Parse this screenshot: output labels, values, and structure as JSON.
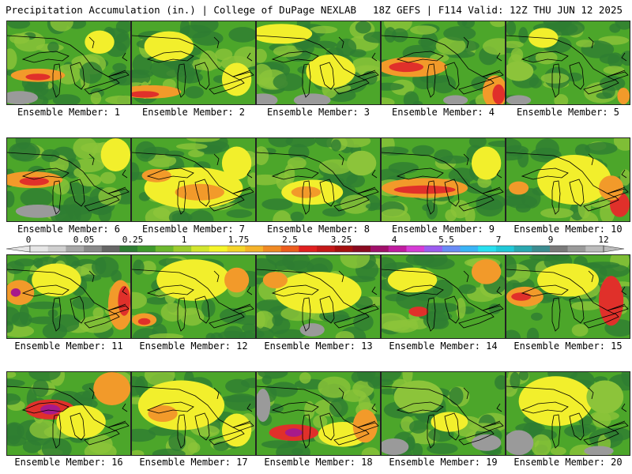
{
  "header": {
    "left": "Precipitation Accumulation (in.) | College of DuPage NEXLAB",
    "right": "18Z GEFS | F114 Valid: 12Z THU JUN 12 2025"
  },
  "panels": [
    {
      "label": "Ensemble Member: 1"
    },
    {
      "label": "Ensemble Member: 2"
    },
    {
      "label": "Ensemble Member: 3"
    },
    {
      "label": "Ensemble Member: 4"
    },
    {
      "label": "Ensemble Member: 5"
    },
    {
      "label": "Ensemble Member: 6"
    },
    {
      "label": "Ensemble Member: 7"
    },
    {
      "label": "Ensemble Member: 8"
    },
    {
      "label": "Ensemble Member: 9"
    },
    {
      "label": "Ensemble Member: 10"
    },
    {
      "label": "Ensemble Member: 11"
    },
    {
      "label": "Ensemble Member: 12"
    },
    {
      "label": "Ensemble Member: 13"
    },
    {
      "label": "Ensemble Member: 14"
    },
    {
      "label": "Ensemble Member: 15"
    },
    {
      "label": "Ensemble Member: 16"
    },
    {
      "label": "Ensemble Member: 17"
    },
    {
      "label": "Ensemble Member: 18"
    },
    {
      "label": "Ensemble Member: 19"
    },
    {
      "label": "Ensemble Member: 20"
    }
  ],
  "colorbar": {
    "labels": [
      "0",
      "0.05",
      "0.25",
      "1",
      "1.75",
      "2.5",
      "3.25",
      "4",
      "5.5",
      "7",
      "9",
      "12"
    ],
    "colors": [
      "#e6e6e6",
      "#cfcfcf",
      "#a8a8a8",
      "#8a8a8a",
      "#666666",
      "#2e7d32",
      "#3f9a2c",
      "#6cb82e",
      "#9ccc2e",
      "#d2e62e",
      "#f5f52a",
      "#f5d52a",
      "#f5b32a",
      "#f08a24",
      "#ec5d1e",
      "#e02020",
      "#c41818",
      "#a51010",
      "#8a0a20",
      "#a0106a",
      "#c01ca0",
      "#d63cd6",
      "#9c5cf0",
      "#6a8cf6",
      "#3ab4f6",
      "#28e0f0",
      "#20c8d8",
      "#2aa8b0",
      "#3c8c90",
      "#7a7a7a",
      "#9a9a9a",
      "#bcbcbc"
    ]
  },
  "colors": {
    "forest": "#2e7d32",
    "green": "#4ca62a",
    "lightgreen": "#8cc43a",
    "yellow": "#f2ef2c",
    "orange": "#f29a2a",
    "red": "#e0302a",
    "magenta": "#a81a8a",
    "gray": "#9a9a9a"
  },
  "panel_features": [
    {
      "blobs": [
        [
          "yellow",
          0.75,
          0.25,
          0.12,
          0.14
        ],
        [
          "orange",
          0.25,
          0.65,
          0.22,
          0.08
        ],
        [
          "red",
          0.25,
          0.67,
          0.1,
          0.04
        ],
        [
          "gray",
          0.1,
          0.92,
          0.15,
          0.08
        ]
      ]
    },
    {
      "blobs": [
        [
          "yellow",
          0.3,
          0.3,
          0.2,
          0.18
        ],
        [
          "orange",
          0.15,
          0.85,
          0.25,
          0.08
        ],
        [
          "red",
          0.1,
          0.88,
          0.12,
          0.04
        ],
        [
          "yellow",
          0.85,
          0.7,
          0.12,
          0.2
        ]
      ]
    },
    {
      "blobs": [
        [
          "yellow",
          0.2,
          0.15,
          0.25,
          0.12
        ],
        [
          "yellow",
          0.6,
          0.6,
          0.2,
          0.2
        ],
        [
          "gray",
          0.05,
          0.95,
          0.12,
          0.08
        ],
        [
          "gray",
          0.45,
          0.95,
          0.15,
          0.08
        ]
      ]
    },
    {
      "blobs": [
        [
          "orange",
          0.25,
          0.55,
          0.28,
          0.12
        ],
        [
          "red",
          0.2,
          0.55,
          0.14,
          0.06
        ],
        [
          "orange",
          0.92,
          0.85,
          0.1,
          0.2
        ],
        [
          "red",
          0.95,
          0.88,
          0.05,
          0.12
        ],
        [
          "gray",
          0.6,
          0.95,
          0.1,
          0.06
        ]
      ]
    },
    {
      "blobs": [
        [
          "yellow",
          0.3,
          0.2,
          0.12,
          0.12
        ],
        [
          "lightgreen",
          0.1,
          0.6,
          0.12,
          0.12
        ],
        [
          "gray",
          0.1,
          0.95,
          0.1,
          0.06
        ],
        [
          "orange",
          0.95,
          0.9,
          0.05,
          0.1
        ]
      ]
    },
    {
      "blobs": [
        [
          "orange",
          0.2,
          0.5,
          0.25,
          0.1
        ],
        [
          "red",
          0.22,
          0.52,
          0.12,
          0.05
        ],
        [
          "gray",
          0.25,
          0.88,
          0.18,
          0.08
        ],
        [
          "yellow",
          0.88,
          0.2,
          0.12,
          0.2
        ]
      ]
    },
    {
      "blobs": [
        [
          "yellow",
          0.5,
          0.6,
          0.4,
          0.25
        ],
        [
          "orange",
          0.55,
          0.65,
          0.2,
          0.1
        ],
        [
          "orange",
          0.2,
          0.45,
          0.12,
          0.08
        ],
        [
          "yellow",
          0.85,
          0.3,
          0.12,
          0.2
        ]
      ]
    },
    {
      "blobs": [
        [
          "yellow",
          0.45,
          0.65,
          0.25,
          0.15
        ],
        [
          "orange",
          0.4,
          0.65,
          0.12,
          0.07
        ],
        [
          "lightgreen",
          0.85,
          0.3,
          0.12,
          0.15
        ]
      ]
    },
    {
      "blobs": [
        [
          "orange",
          0.35,
          0.6,
          0.35,
          0.12
        ],
        [
          "red",
          0.35,
          0.62,
          0.25,
          0.05
        ],
        [
          "yellow",
          0.85,
          0.3,
          0.12,
          0.2
        ]
      ]
    },
    {
      "blobs": [
        [
          "yellow",
          0.55,
          0.5,
          0.3,
          0.3
        ],
        [
          "orange",
          0.1,
          0.6,
          0.08,
          0.08
        ],
        [
          "red",
          0.92,
          0.8,
          0.08,
          0.15
        ],
        [
          "orange",
          0.85,
          0.6,
          0.1,
          0.15
        ]
      ]
    },
    {
      "blobs": [
        [
          "orange",
          0.1,
          0.45,
          0.12,
          0.15
        ],
        [
          "magenta",
          0.07,
          0.45,
          0.04,
          0.05
        ],
        [
          "orange",
          0.92,
          0.6,
          0.1,
          0.3
        ],
        [
          "red",
          0.95,
          0.55,
          0.05,
          0.18
        ],
        [
          "yellow",
          0.4,
          0.3,
          0.2,
          0.2
        ]
      ]
    },
    {
      "blobs": [
        [
          "orange",
          0.1,
          0.78,
          0.1,
          0.08
        ],
        [
          "red",
          0.1,
          0.8,
          0.05,
          0.04
        ],
        [
          "yellow",
          0.5,
          0.3,
          0.3,
          0.25
        ],
        [
          "orange",
          0.85,
          0.3,
          0.1,
          0.15
        ]
      ]
    },
    {
      "blobs": [
        [
          "yellow",
          0.5,
          0.45,
          0.35,
          0.25
        ],
        [
          "orange",
          0.15,
          0.3,
          0.1,
          0.1
        ],
        [
          "gray",
          0.45,
          0.9,
          0.1,
          0.08
        ]
      ]
    },
    {
      "blobs": [
        [
          "yellow",
          0.25,
          0.3,
          0.2,
          0.15
        ],
        [
          "red",
          0.3,
          0.68,
          0.08,
          0.06
        ],
        [
          "orange",
          0.85,
          0.2,
          0.12,
          0.15
        ]
      ]
    },
    {
      "blobs": [
        [
          "orange",
          0.15,
          0.5,
          0.15,
          0.12
        ],
        [
          "red",
          0.12,
          0.5,
          0.08,
          0.05
        ],
        [
          "red",
          0.85,
          0.55,
          0.1,
          0.3
        ],
        [
          "yellow",
          0.5,
          0.3,
          0.25,
          0.2
        ]
      ]
    },
    {
      "blobs": [
        [
          "red",
          0.35,
          0.45,
          0.2,
          0.12
        ],
        [
          "magenta",
          0.35,
          0.45,
          0.08,
          0.06
        ],
        [
          "orange",
          0.85,
          0.2,
          0.15,
          0.2
        ],
        [
          "yellow",
          0.6,
          0.6,
          0.2,
          0.2
        ]
      ]
    },
    {
      "blobs": [
        [
          "yellow",
          0.4,
          0.4,
          0.35,
          0.3
        ],
        [
          "orange",
          0.25,
          0.5,
          0.12,
          0.1
        ],
        [
          "yellow",
          0.85,
          0.7,
          0.12,
          0.2
        ]
      ]
    },
    {
      "blobs": [
        [
          "red",
          0.3,
          0.73,
          0.2,
          0.1
        ],
        [
          "magenta",
          0.3,
          0.73,
          0.07,
          0.05
        ],
        [
          "yellow",
          0.7,
          0.75,
          0.2,
          0.15
        ],
        [
          "orange",
          0.88,
          0.65,
          0.1,
          0.2
        ],
        [
          "gray",
          0.05,
          0.4,
          0.06,
          0.2
        ]
      ]
    },
    {
      "blobs": [
        [
          "lightgreen",
          0.3,
          0.3,
          0.2,
          0.2
        ],
        [
          "gray",
          0.1,
          0.9,
          0.12,
          0.1
        ],
        [
          "gray",
          0.85,
          0.85,
          0.12,
          0.1
        ],
        [
          "yellow",
          0.55,
          0.6,
          0.15,
          0.12
        ]
      ]
    },
    {
      "blobs": [
        [
          "yellow",
          0.4,
          0.35,
          0.3,
          0.3
        ],
        [
          "gray",
          0.1,
          0.85,
          0.12,
          0.15
        ],
        [
          "gray",
          0.75,
          0.95,
          0.12,
          0.06
        ],
        [
          "lightgreen",
          0.8,
          0.3,
          0.15,
          0.2
        ]
      ]
    }
  ]
}
